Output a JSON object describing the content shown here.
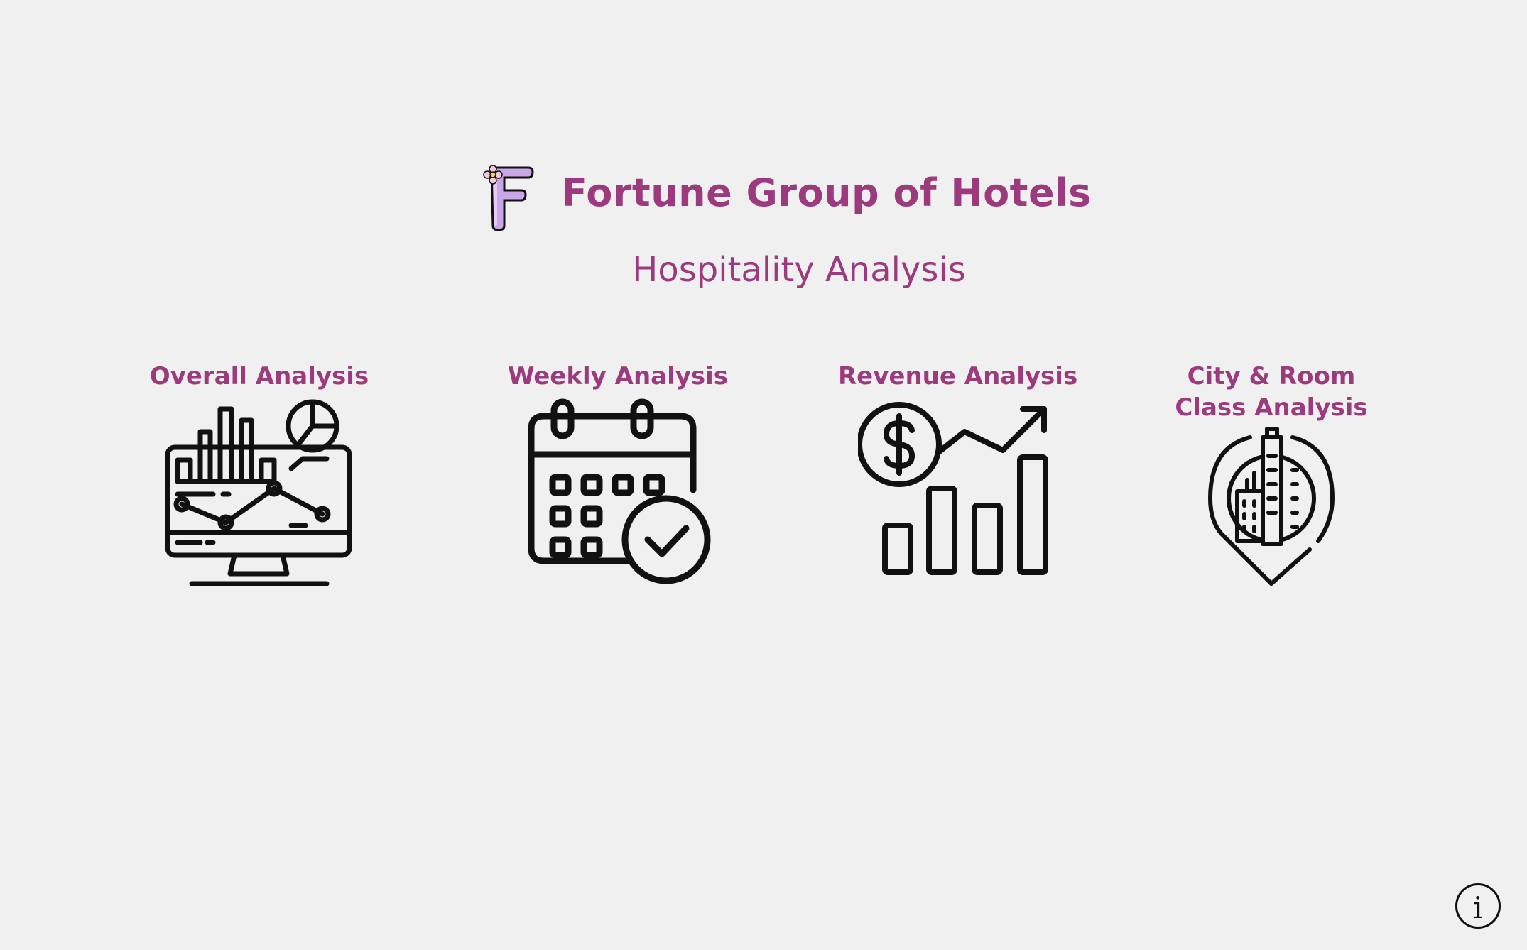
{
  "brand": {
    "title": "Fortune Group of Hotels",
    "subtitle": "Hospitality Analysis",
    "accent_color": "#9c3a7e",
    "logo_icon": "purple-letter-f-with-flower-icon"
  },
  "nav": {
    "overall": {
      "label": "Overall Analysis",
      "icon": "monitor-dashboard-chart-icon"
    },
    "weekly": {
      "label": "Weekly Analysis",
      "icon": "calendar-check-icon"
    },
    "revenue": {
      "label": "Revenue Analysis",
      "icon": "dollar-growth-bar-chart-icon"
    },
    "city_room": {
      "label_line1": "City & Room",
      "label_line2": "Class Analysis",
      "icon": "city-location-pin-icon"
    }
  },
  "info": {
    "symbol": "i",
    "icon": "info-icon"
  }
}
